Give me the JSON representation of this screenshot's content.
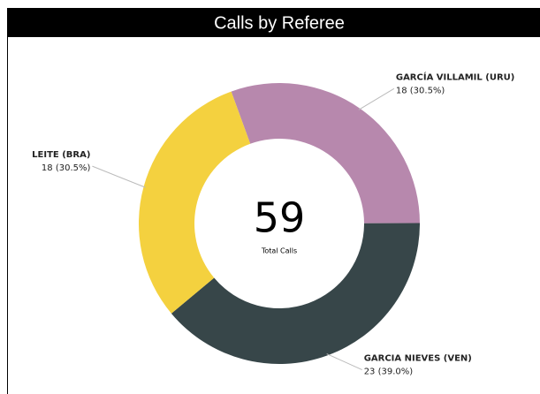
{
  "chart_data": {
    "type": "donut",
    "title": "Calls by Referee",
    "categories": [
      "GARCÍA VILLAMIL (URU)",
      "GARCIA NIEVES (VEN)",
      "LEITE (BRA)"
    ],
    "values": [
      18,
      23,
      18
    ],
    "value_labels": [
      "18 (30.5%)",
      "23 (39.0%)",
      "18 (30.5%)"
    ],
    "colors": [
      "#b788ad",
      "#374649",
      "#f4d13f"
    ],
    "total": 59,
    "total_label": "Total Calls"
  }
}
